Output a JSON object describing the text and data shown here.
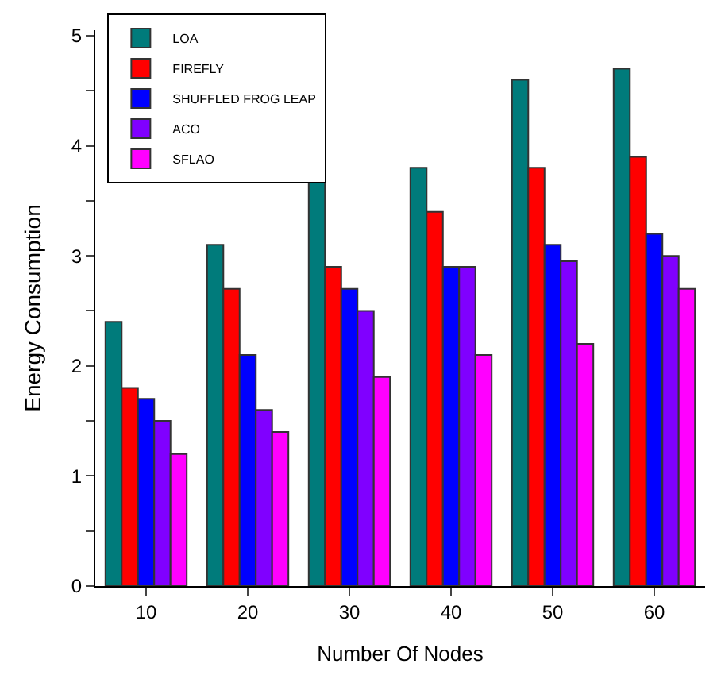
{
  "chart_data": {
    "type": "bar",
    "xlabel": "Number Of Nodes",
    "ylabel": "Energy Consumption",
    "categories": [
      "10",
      "20",
      "30",
      "40",
      "50",
      "60"
    ],
    "series": [
      {
        "name": "LOA",
        "color": "#007b7b",
        "values": [
          2.4,
          3.1,
          3.7,
          3.8,
          4.6,
          4.7
        ]
      },
      {
        "name": "FIREFLY",
        "color": "#ff0000",
        "values": [
          1.8,
          2.7,
          2.9,
          3.4,
          3.8,
          3.9
        ]
      },
      {
        "name": "SHUFFLED FROG LEAP",
        "color": "#0000ff",
        "values": [
          1.7,
          2.1,
          2.7,
          2.9,
          3.1,
          3.2
        ]
      },
      {
        "name": "ACO",
        "color": "#8000ff",
        "values": [
          1.5,
          1.6,
          2.5,
          2.9,
          2.95,
          3.0
        ]
      },
      {
        "name": "SFLAO",
        "color": "#ff00ff",
        "values": [
          1.2,
          1.4,
          1.9,
          2.1,
          2.2,
          2.7
        ]
      }
    ],
    "ylim": [
      0,
      5.05
    ],
    "yticks": [
      0,
      {
        "value": 0.5,
        "label": null
      },
      1,
      {
        "value": 1.5,
        "label": null
      },
      2,
      {
        "value": 2.5,
        "label": null
      },
      3,
      {
        "value": 3.5,
        "label": null
      },
      4,
      {
        "value": 4.5,
        "label": null
      },
      5
    ],
    "legend": "top left"
  }
}
